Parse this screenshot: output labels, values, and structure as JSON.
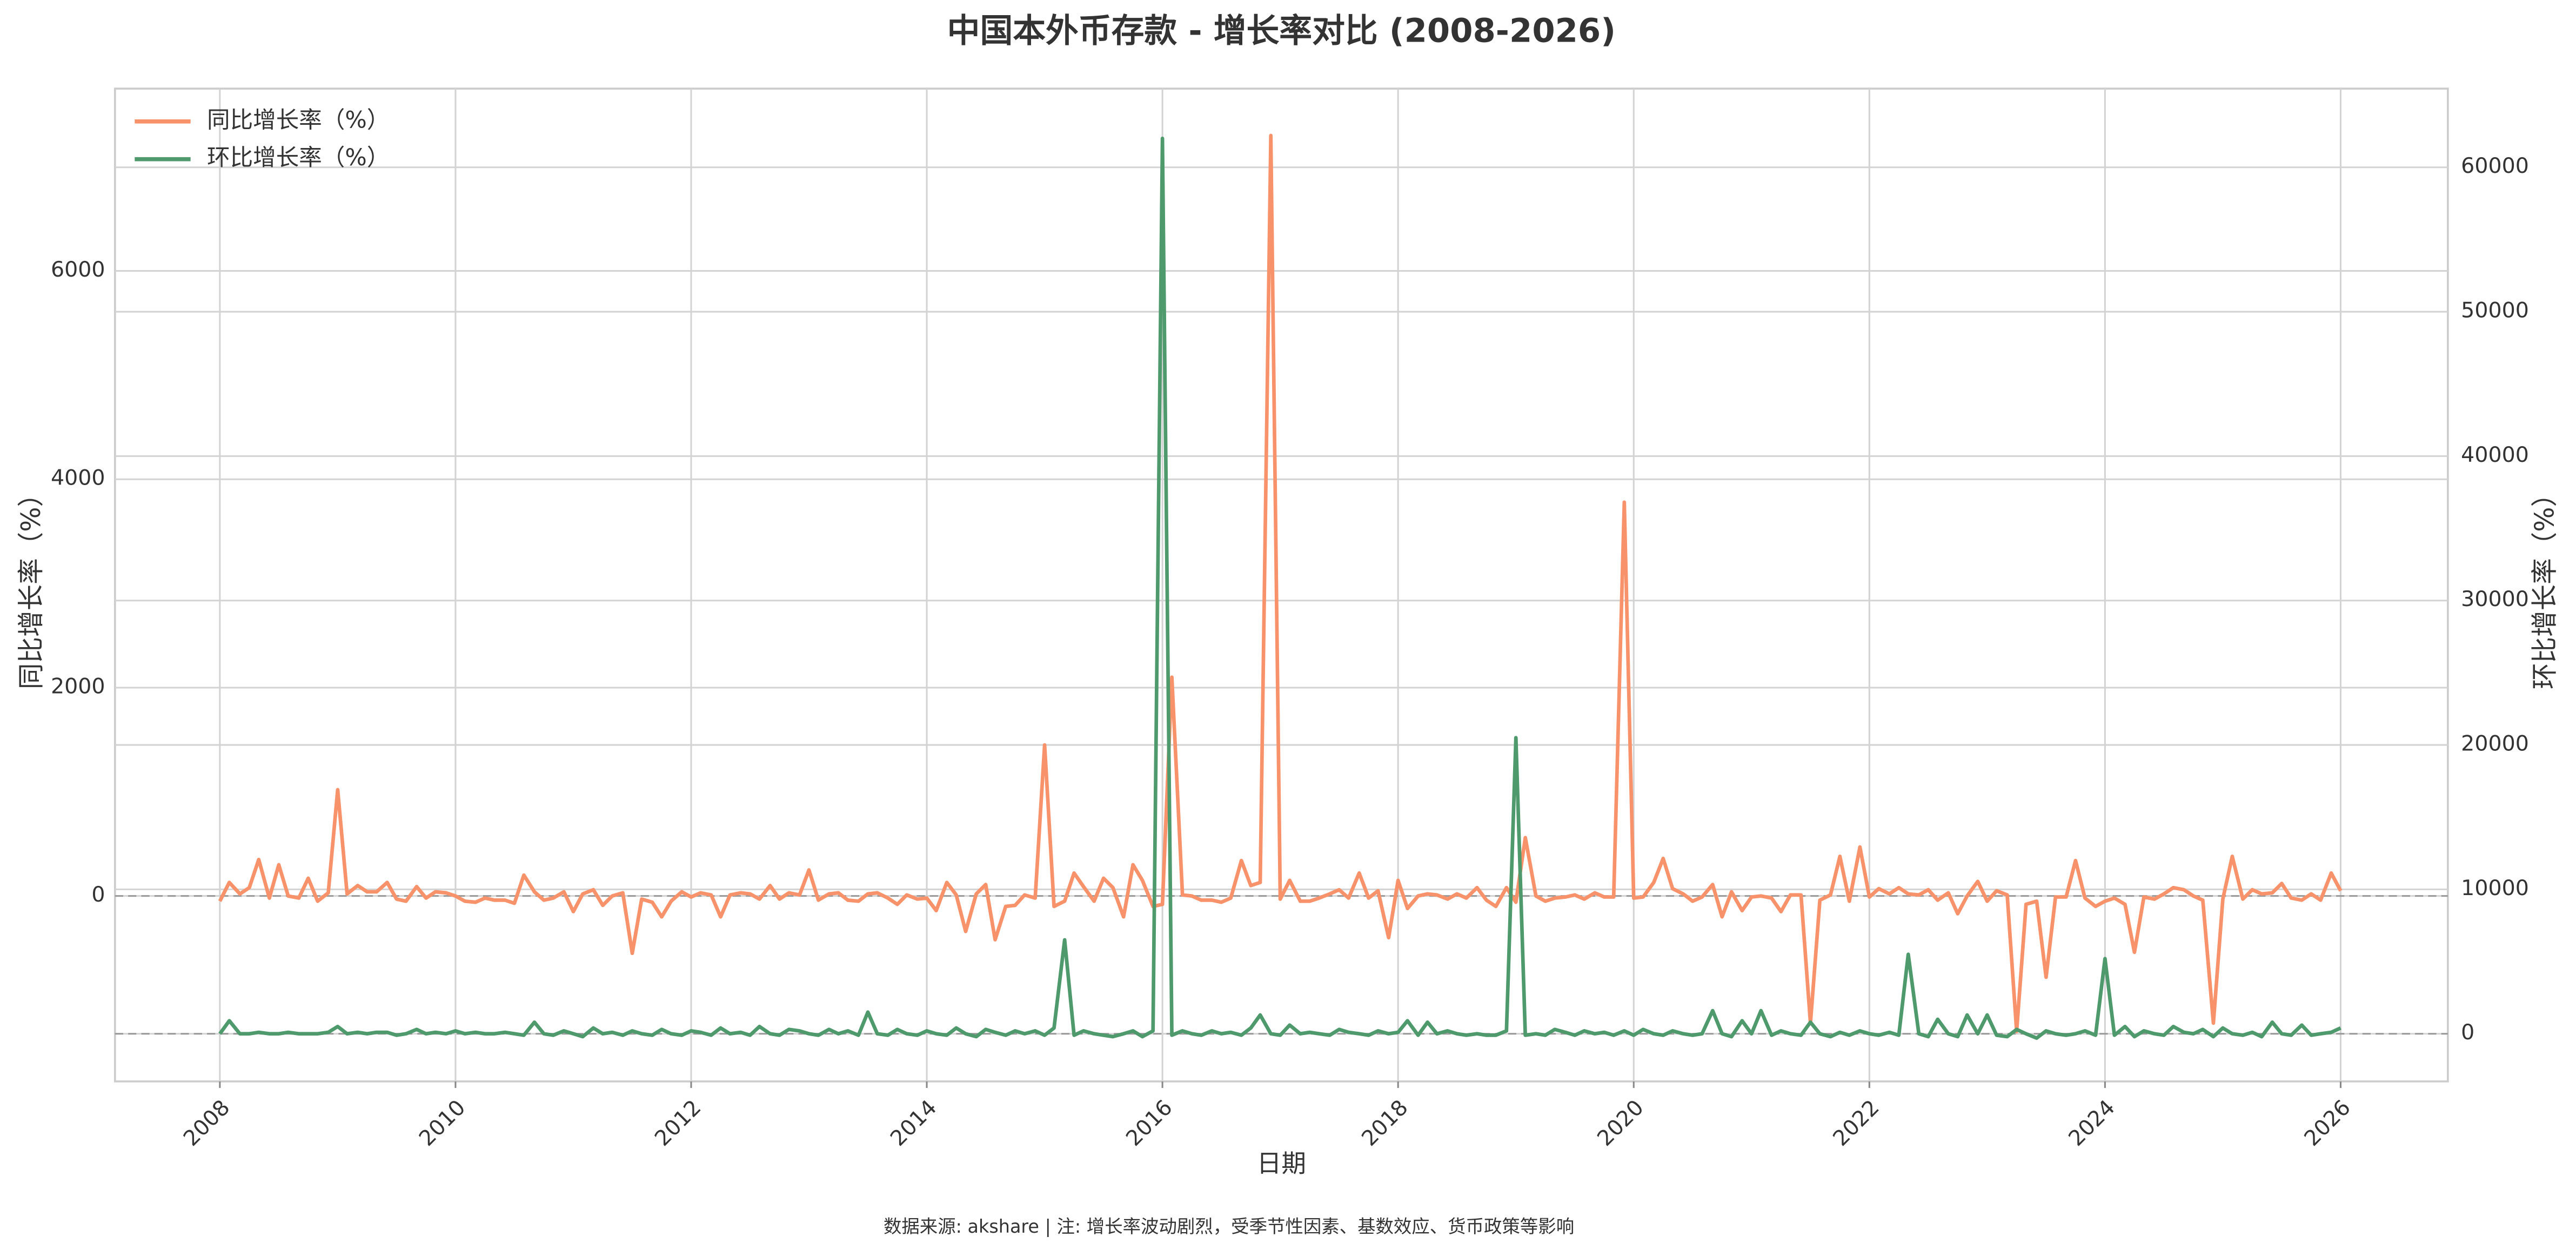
{
  "chart_data": {
    "type": "line",
    "title": "中国本外币存款 - 增长率对比 (2008-2026)",
    "x_label": "日期",
    "y_label": "同比增长率（%）",
    "y2_label": "环比增长率（%）",
    "footnote": "数据来源: akshare | 注: 增长率波动剧烈，受季节性因素、基数效应、货币政策等影响",
    "xlim": [
      2007.11,
      2026.91
    ],
    "xticks": [
      2008,
      2010,
      2012,
      2014,
      2016,
      2018,
      2020,
      2022,
      2024,
      2026
    ],
    "ylim": [
      -1780,
      7750
    ],
    "yticks": [
      0,
      2000,
      4000,
      6000
    ],
    "y2lim": [
      -3300,
      65450
    ],
    "y2ticks": [
      0,
      10000,
      20000,
      30000,
      40000,
      50000,
      60000
    ],
    "grid": true,
    "ref_lines": {
      "y": 0,
      "y2": 0
    },
    "legend": "upper left",
    "x": [
      2008,
      2008.08,
      2008.17,
      2008.25,
      2008.33,
      2008.42,
      2008.5,
      2008.58,
      2008.67,
      2008.75,
      2008.83,
      2008.92,
      2009,
      2009.08,
      2009.17,
      2009.25,
      2009.33,
      2009.42,
      2009.5,
      2009.58,
      2009.67,
      2009.75,
      2009.83,
      2009.92,
      2010,
      2010.08,
      2010.17,
      2010.25,
      2010.33,
      2010.42,
      2010.5,
      2010.58,
      2010.67,
      2010.75,
      2010.83,
      2010.92,
      2011,
      2011.08,
      2011.17,
      2011.25,
      2011.33,
      2011.42,
      2011.5,
      2011.58,
      2011.67,
      2011.75,
      2011.83,
      2011.92,
      2012,
      2012.08,
      2012.17,
      2012.25,
      2012.33,
      2012.42,
      2012.5,
      2012.58,
      2012.67,
      2012.75,
      2012.83,
      2012.92,
      2013,
      2013.08,
      2013.17,
      2013.25,
      2013.33,
      2013.42,
      2013.5,
      2013.58,
      2013.67,
      2013.75,
      2013.83,
      2013.92,
      2014,
      2014.08,
      2014.17,
      2014.25,
      2014.33,
      2014.42,
      2014.5,
      2014.58,
      2014.67,
      2014.75,
      2014.83,
      2014.92,
      2015,
      2015.08,
      2015.17,
      2015.25,
      2015.33,
      2015.42,
      2015.5,
      2015.58,
      2015.67,
      2015.75,
      2015.83,
      2015.92,
      2016,
      2016.08,
      2016.17,
      2016.25,
      2016.33,
      2016.42,
      2016.5,
      2016.58,
      2016.67,
      2016.75,
      2016.83,
      2016.92,
      2017,
      2017.08,
      2017.17,
      2017.25,
      2017.33,
      2017.42,
      2017.5,
      2017.58,
      2017.67,
      2017.75,
      2017.83,
      2017.92,
      2018,
      2018.08,
      2018.17,
      2018.25,
      2018.33,
      2018.42,
      2018.5,
      2018.58,
      2018.67,
      2018.75,
      2018.83,
      2018.92,
      2019,
      2019.08,
      2019.17,
      2019.25,
      2019.33,
      2019.42,
      2019.5,
      2019.58,
      2019.67,
      2019.75,
      2019.83,
      2019.92,
      2020,
      2020.08,
      2020.17,
      2020.25,
      2020.33,
      2020.42,
      2020.5,
      2020.58,
      2020.67,
      2020.75,
      2020.83,
      2020.92,
      2021,
      2021.08,
      2021.17,
      2021.25,
      2021.33,
      2021.42,
      2021.5,
      2021.58,
      2021.67,
      2021.75,
      2021.83,
      2021.92,
      2022,
      2022.08,
      2022.17,
      2022.25,
      2022.33,
      2022.42,
      2022.5,
      2022.58,
      2022.67,
      2022.75,
      2022.83,
      2022.92,
      2023,
      2023.08,
      2023.17,
      2023.25,
      2023.33,
      2023.42,
      2023.5,
      2023.58,
      2023.67,
      2023.75,
      2023.83,
      2023.92,
      2024,
      2024.08,
      2024.17,
      2024.25,
      2024.33,
      2024.42,
      2024.5,
      2024.58,
      2024.67,
      2024.75,
      2024.83,
      2024.92,
      2025,
      2025.08,
      2025.17,
      2025.25,
      2025.33,
      2025.42,
      2025.5,
      2025.58,
      2025.67,
      2025.75,
      2025.83,
      2025.92,
      2026
    ],
    "series": [
      {
        "name": "同比增长率（%）",
        "color": "#f8926a",
        "axis": "y",
        "values": [
          -50,
          130,
          20,
          80,
          350,
          -20,
          300,
          0,
          -20,
          170,
          -50,
          30,
          1020,
          20,
          100,
          40,
          40,
          130,
          -30,
          -50,
          90,
          -20,
          40,
          30,
          0,
          -50,
          -60,
          -20,
          -40,
          -40,
          -70,
          200,
          40,
          -40,
          -20,
          40,
          -150,
          20,
          60,
          -90,
          0,
          30,
          -550,
          -30,
          -60,
          -200,
          -50,
          40,
          -10,
          30,
          10,
          -200,
          10,
          30,
          20,
          -30,
          100,
          -30,
          30,
          10,
          250,
          -40,
          20,
          30,
          -40,
          -50,
          20,
          30,
          -20,
          -80,
          10,
          -30,
          -20,
          -140,
          130,
          10,
          -340,
          20,
          110,
          -420,
          -100,
          -90,
          10,
          -20,
          1450,
          -100,
          -50,
          220,
          90,
          -50,
          170,
          80,
          -200,
          300,
          150,
          -100,
          -80,
          2100,
          10,
          0,
          -40,
          -40,
          -60,
          -20,
          340,
          100,
          130,
          7300,
          -30,
          150,
          -50,
          -50,
          -20,
          20,
          60,
          -20,
          220,
          -20,
          50,
          -400,
          150,
          -120,
          0,
          20,
          10,
          -30,
          20,
          -20,
          80,
          -40,
          -100,
          80,
          -60,
          560,
          0,
          -50,
          -20,
          -10,
          10,
          -30,
          30,
          -10,
          -10,
          3780,
          -20,
          -10,
          130,
          360,
          70,
          20,
          -50,
          -10,
          110,
          -200,
          40,
          -140,
          -10,
          0,
          -20,
          -150,
          10,
          10,
          -1220,
          -40,
          10,
          380,
          -50,
          470,
          -10,
          70,
          20,
          80,
          20,
          10,
          60,
          -40,
          30,
          -170,
          0,
          140,
          -50,
          50,
          10,
          -1300,
          -80,
          -50,
          -780,
          -10,
          -10,
          340,
          -20,
          -100,
          -50,
          -20,
          -80,
          -540,
          -10,
          -30,
          20,
          80,
          60,
          0,
          -40,
          -1220,
          -30,
          380,
          -30,
          60,
          20,
          30,
          120,
          -20,
          -40,
          20,
          -40,
          220,
          50
        ]
      },
      {
        "name": "环比增长率（%）",
        "color": "#4f9a6c",
        "axis": "y2",
        "values": [
          0,
          900,
          0,
          0,
          100,
          0,
          0,
          100,
          0,
          0,
          0,
          100,
          500,
          0,
          100,
          0,
          100,
          100,
          -100,
          0,
          300,
          0,
          100,
          0,
          200,
          0,
          100,
          0,
          0,
          100,
          0,
          -100,
          800,
          0,
          -100,
          200,
          0,
          -200,
          400,
          0,
          100,
          -100,
          200,
          0,
          -100,
          300,
          0,
          -100,
          200,
          100,
          -100,
          400,
          0,
          100,
          -100,
          500,
          0,
          -100,
          300,
          200,
          0,
          -100,
          300,
          0,
          200,
          -100,
          1500,
          0,
          -100,
          300,
          0,
          -100,
          200,
          0,
          -100,
          400,
          0,
          -200,
          300,
          100,
          -100,
          200,
          0,
          200,
          -100,
          400,
          6500,
          -100,
          200,
          0,
          -100,
          -200,
          0,
          200,
          -200,
          200,
          62000,
          -100,
          200,
          0,
          -100,
          200,
          0,
          100,
          -100,
          400,
          1300,
          0,
          -100,
          600,
          0,
          100,
          0,
          -100,
          300,
          100,
          0,
          -100,
          200,
          0,
          100,
          900,
          -100,
          800,
          0,
          200,
          0,
          -100,
          0,
          -100,
          -100,
          200,
          20500,
          -100,
          0,
          -100,
          300,
          100,
          -100,
          200,
          0,
          100,
          -100,
          200,
          -100,
          300,
          0,
          -100,
          200,
          0,
          -100,
          0,
          1600,
          0,
          -200,
          900,
          0,
          1600,
          -100,
          200,
          0,
          -100,
          800,
          0,
          -200,
          100,
          -100,
          200,
          0,
          -100,
          100,
          -100,
          5500,
          0,
          -200,
          1000,
          0,
          -200,
          1300,
          0,
          1300,
          -100,
          -200,
          300,
          0,
          -300,
          200,
          0,
          -100,
          0,
          200,
          -100,
          5200,
          -100,
          500,
          -200,
          200,
          0,
          -100,
          500,
          100,
          0,
          300,
          -200,
          400,
          0,
          -100,
          100,
          -200,
          800,
          0,
          -100,
          600,
          -100,
          0,
          100,
          400
        ]
      }
    ]
  }
}
